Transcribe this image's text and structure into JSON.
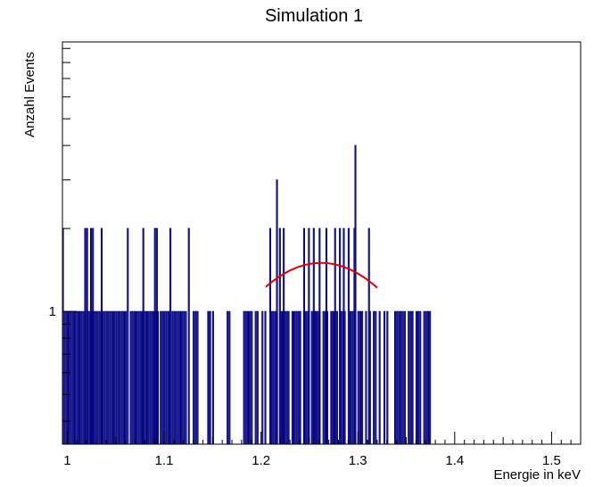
{
  "chart_data": {
    "type": "bar",
    "title": "Simulation 1",
    "xlabel": "Energie in keV",
    "ylabel": "Anzahl Events",
    "xlim": [
      0.995,
      1.53
    ],
    "ylim": [
      0.33,
      9.5
    ],
    "yscale": "log",
    "x_ticks": [
      1.0,
      1.1,
      1.2,
      1.3,
      1.4,
      1.5
    ],
    "x_tick_labels": [
      "1",
      "1.1",
      "1.2",
      "1.3",
      "1.4",
      "1.5"
    ],
    "y_ticks": [
      1
    ],
    "y_tick_labels": [
      "1"
    ],
    "grid": false,
    "line_color": "#000080",
    "fit_color": "#e00000",
    "histogram": {
      "bin_width": 0.001,
      "bins_value_1": [
        0.997,
        0.999,
        1.001,
        1.003,
        1.005,
        1.007,
        1.008,
        1.01,
        1.012,
        1.014,
        1.016,
        1.018,
        1.021,
        1.023,
        1.025,
        1.027,
        1.029,
        1.031,
        1.033,
        1.035,
        1.036,
        1.038,
        1.04,
        1.042,
        1.044,
        1.046,
        1.048,
        1.05,
        1.052,
        1.054,
        1.056,
        1.058,
        1.06,
        1.065,
        1.067,
        1.069,
        1.071,
        1.073,
        1.075,
        1.077,
        1.079,
        1.081,
        1.083,
        1.085,
        1.087,
        1.089,
        1.091,
        1.093,
        1.096,
        1.098,
        1.1,
        1.102,
        1.104,
        1.108,
        1.11,
        1.112,
        1.114,
        1.116,
        1.118,
        1.12,
        1.122,
        1.13,
        1.132,
        1.134,
        1.145,
        1.147,
        1.15,
        1.165,
        1.167,
        1.182,
        1.184,
        1.186,
        1.188,
        1.19,
        1.194,
        1.196,
        1.201,
        1.204,
        1.21,
        1.212,
        1.214,
        1.216,
        1.22,
        1.222,
        1.224,
        1.226,
        1.228,
        1.232,
        1.234,
        1.236,
        1.238,
        1.24,
        1.244,
        1.246,
        1.248,
        1.252,
        1.254,
        1.256,
        1.258,
        1.26,
        1.264,
        1.266,
        1.268,
        1.272,
        1.274,
        1.276,
        1.278,
        1.282,
        1.284,
        1.286,
        1.292,
        1.294,
        1.296,
        1.3,
        1.302,
        1.304,
        1.308,
        1.312,
        1.316,
        1.318,
        1.322,
        1.327,
        1.33,
        1.338,
        1.34,
        1.342,
        1.344,
        1.346,
        1.348,
        1.352,
        1.354,
        1.356,
        1.36,
        1.362,
        1.364,
        1.368,
        1.37,
        1.372,
        1.374
      ],
      "bins_value_2": [
        0.995,
        1.018,
        1.02,
        1.024,
        1.026,
        1.035,
        1.062,
        1.078,
        1.09,
        1.092,
        1.106,
        1.125,
        1.209,
        1.219,
        1.223,
        1.244,
        1.249,
        1.254,
        1.26,
        1.267,
        1.276,
        1.281,
        1.285,
        1.29,
        1.296,
        1.311
      ],
      "bins_value_3": [
        1.216
      ],
      "bins_value_4": [
        1.297
      ]
    },
    "fit": {
      "type": "gaussian",
      "amplitude": 1.5,
      "mean": 1.262,
      "sigma": 0.09,
      "x_range": [
        1.205,
        1.32
      ]
    }
  }
}
